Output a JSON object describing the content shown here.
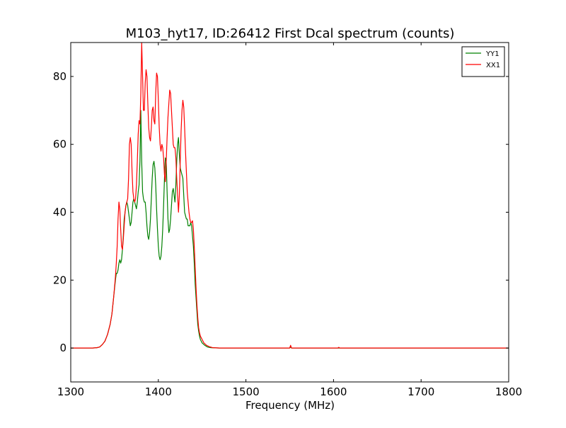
{
  "chart_data": {
    "type": "line",
    "title": "M103_hyt17, ID:26412 First Dcal spectrum (counts)",
    "xlabel": "Frequency (MHz)",
    "ylabel": "",
    "xlim": [
      1300,
      1800
    ],
    "ylim": [
      -10,
      90
    ],
    "xticks": [
      1300,
      1400,
      1500,
      1600,
      1700,
      1800
    ],
    "yticks": [
      0,
      20,
      40,
      60,
      80
    ],
    "grid": false,
    "legend_position": "top-right",
    "series": [
      {
        "name": "YY1",
        "color": "#008000",
        "points": [
          [
            1300,
            0
          ],
          [
            1325,
            0
          ],
          [
            1330,
            0.1
          ],
          [
            1333,
            0.3
          ],
          [
            1336,
            1
          ],
          [
            1339,
            2
          ],
          [
            1342,
            4
          ],
          [
            1345,
            7
          ],
          [
            1347,
            10
          ],
          [
            1349,
            15
          ],
          [
            1351,
            20
          ],
          [
            1352,
            22
          ],
          [
            1353,
            22
          ],
          [
            1354,
            23
          ],
          [
            1355,
            25
          ],
          [
            1356,
            26
          ],
          [
            1357,
            25
          ],
          [
            1358,
            26
          ],
          [
            1359,
            29
          ],
          [
            1360,
            33
          ],
          [
            1361,
            38
          ],
          [
            1362,
            40
          ],
          [
            1363,
            42
          ],
          [
            1364,
            43
          ],
          [
            1365,
            42
          ],
          [
            1366,
            40
          ],
          [
            1367,
            38
          ],
          [
            1368,
            36
          ],
          [
            1369,
            37
          ],
          [
            1370,
            40
          ],
          [
            1371,
            43
          ],
          [
            1372,
            44
          ],
          [
            1373,
            43
          ],
          [
            1374,
            42
          ],
          [
            1375,
            41
          ],
          [
            1376,
            43
          ],
          [
            1377,
            46
          ],
          [
            1378,
            48
          ],
          [
            1379,
            55
          ],
          [
            1380,
            70
          ],
          [
            1381,
            55
          ],
          [
            1382,
            46
          ],
          [
            1383,
            44
          ],
          [
            1384,
            43
          ],
          [
            1385,
            43
          ],
          [
            1386,
            40
          ],
          [
            1387,
            36
          ],
          [
            1388,
            33
          ],
          [
            1389,
            32
          ],
          [
            1390,
            34
          ],
          [
            1391,
            38
          ],
          [
            1392,
            44
          ],
          [
            1393,
            50
          ],
          [
            1394,
            54
          ],
          [
            1395,
            55
          ],
          [
            1396,
            53
          ],
          [
            1397,
            48
          ],
          [
            1398,
            41
          ],
          [
            1399,
            35
          ],
          [
            1400,
            30
          ],
          [
            1401,
            27
          ],
          [
            1402,
            26
          ],
          [
            1403,
            27
          ],
          [
            1404,
            30
          ],
          [
            1405,
            35
          ],
          [
            1406,
            42
          ],
          [
            1407,
            50
          ],
          [
            1408,
            56
          ],
          [
            1409,
            55
          ],
          [
            1410,
            46
          ],
          [
            1411,
            38
          ],
          [
            1412,
            34
          ],
          [
            1413,
            35
          ],
          [
            1414,
            38
          ],
          [
            1415,
            42
          ],
          [
            1416,
            46
          ],
          [
            1417,
            47
          ],
          [
            1418,
            45
          ],
          [
            1419,
            43
          ],
          [
            1420,
            48
          ],
          [
            1421,
            55
          ],
          [
            1422,
            60
          ],
          [
            1423,
            62
          ],
          [
            1424,
            57
          ],
          [
            1425,
            53
          ],
          [
            1426,
            52
          ],
          [
            1427,
            51
          ],
          [
            1428,
            50
          ],
          [
            1429,
            45
          ],
          [
            1430,
            40
          ],
          [
            1431,
            39
          ],
          [
            1432,
            38
          ],
          [
            1433,
            38
          ],
          [
            1434,
            36
          ],
          [
            1435,
            36
          ],
          [
            1436,
            36
          ],
          [
            1437,
            37
          ],
          [
            1438,
            36
          ],
          [
            1439,
            33
          ],
          [
            1440,
            30
          ],
          [
            1441,
            25
          ],
          [
            1442,
            19
          ],
          [
            1443,
            15
          ],
          [
            1444,
            11
          ],
          [
            1445,
            7
          ],
          [
            1446,
            5
          ],
          [
            1447,
            3.5
          ],
          [
            1448,
            2.5
          ],
          [
            1450,
            1.5
          ],
          [
            1453,
            0.8
          ],
          [
            1456,
            0.3
          ],
          [
            1460,
            0.1
          ],
          [
            1470,
            0
          ],
          [
            1550,
            0
          ],
          [
            1551,
            0.3
          ],
          [
            1552,
            0
          ],
          [
            1800,
            0
          ]
        ]
      },
      {
        "name": "XX1",
        "color": "#ff0000",
        "points": [
          [
            1300,
            0
          ],
          [
            1325,
            0
          ],
          [
            1330,
            0.1
          ],
          [
            1333,
            0.3
          ],
          [
            1336,
            1
          ],
          [
            1339,
            2
          ],
          [
            1342,
            4
          ],
          [
            1345,
            7
          ],
          [
            1347,
            10
          ],
          [
            1349,
            15
          ],
          [
            1351,
            21
          ],
          [
            1352,
            25
          ],
          [
            1353,
            30
          ],
          [
            1354,
            38
          ],
          [
            1355,
            43
          ],
          [
            1356,
            41
          ],
          [
            1357,
            35
          ],
          [
            1358,
            30
          ],
          [
            1359,
            29
          ],
          [
            1360,
            32
          ],
          [
            1361,
            36
          ],
          [
            1362,
            40
          ],
          [
            1363,
            42
          ],
          [
            1364,
            43
          ],
          [
            1365,
            44
          ],
          [
            1366,
            50
          ],
          [
            1367,
            60
          ],
          [
            1368,
            62
          ],
          [
            1369,
            60
          ],
          [
            1370,
            52
          ],
          [
            1371,
            46
          ],
          [
            1372,
            44
          ],
          [
            1373,
            43
          ],
          [
            1374,
            44
          ],
          [
            1375,
            48
          ],
          [
            1376,
            55
          ],
          [
            1377,
            63
          ],
          [
            1378,
            67
          ],
          [
            1379,
            66
          ],
          [
            1380,
            75
          ],
          [
            1381,
            90
          ],
          [
            1382,
            80
          ],
          [
            1383,
            70
          ],
          [
            1384,
            70
          ],
          [
            1385,
            78
          ],
          [
            1386,
            82
          ],
          [
            1387,
            80
          ],
          [
            1388,
            72
          ],
          [
            1389,
            65
          ],
          [
            1390,
            62
          ],
          [
            1391,
            61
          ],
          [
            1392,
            65
          ],
          [
            1393,
            70
          ],
          [
            1394,
            71
          ],
          [
            1395,
            67
          ],
          [
            1396,
            66
          ],
          [
            1397,
            75
          ],
          [
            1398,
            81
          ],
          [
            1399,
            80
          ],
          [
            1400,
            73
          ],
          [
            1401,
            65
          ],
          [
            1402,
            60
          ],
          [
            1403,
            58
          ],
          [
            1404,
            60
          ],
          [
            1405,
            59
          ],
          [
            1406,
            56
          ],
          [
            1407,
            51
          ],
          [
            1408,
            49
          ],
          [
            1409,
            55
          ],
          [
            1410,
            62
          ],
          [
            1411,
            68
          ],
          [
            1412,
            72
          ],
          [
            1413,
            76
          ],
          [
            1414,
            75
          ],
          [
            1415,
            70
          ],
          [
            1416,
            65
          ],
          [
            1417,
            60
          ],
          [
            1418,
            59
          ],
          [
            1419,
            59
          ],
          [
            1420,
            56
          ],
          [
            1421,
            50
          ],
          [
            1422,
            45
          ],
          [
            1423,
            40
          ],
          [
            1424,
            45
          ],
          [
            1425,
            55
          ],
          [
            1426,
            64
          ],
          [
            1427,
            70
          ],
          [
            1428,
            73
          ],
          [
            1429,
            71
          ],
          [
            1430,
            65
          ],
          [
            1431,
            58
          ],
          [
            1432,
            52
          ],
          [
            1433,
            46
          ],
          [
            1434,
            43
          ],
          [
            1435,
            40
          ],
          [
            1436,
            38
          ],
          [
            1437,
            37
          ],
          [
            1438,
            37
          ],
          [
            1439,
            37.5
          ],
          [
            1440,
            35
          ],
          [
            1441,
            30
          ],
          [
            1442,
            24
          ],
          [
            1443,
            18
          ],
          [
            1444,
            13
          ],
          [
            1445,
            9
          ],
          [
            1446,
            6
          ],
          [
            1447,
            4.5
          ],
          [
            1448,
            3.5
          ],
          [
            1450,
            2.5
          ],
          [
            1452,
            1.5
          ],
          [
            1455,
            0.8
          ],
          [
            1458,
            0.4
          ],
          [
            1462,
            0.1
          ],
          [
            1470,
            0
          ],
          [
            1550,
            0
          ],
          [
            1551,
            0.8
          ],
          [
            1552,
            0
          ],
          [
            1605,
            0
          ],
          [
            1606,
            0.2
          ],
          [
            1607,
            0
          ],
          [
            1800,
            0
          ]
        ]
      }
    ]
  }
}
